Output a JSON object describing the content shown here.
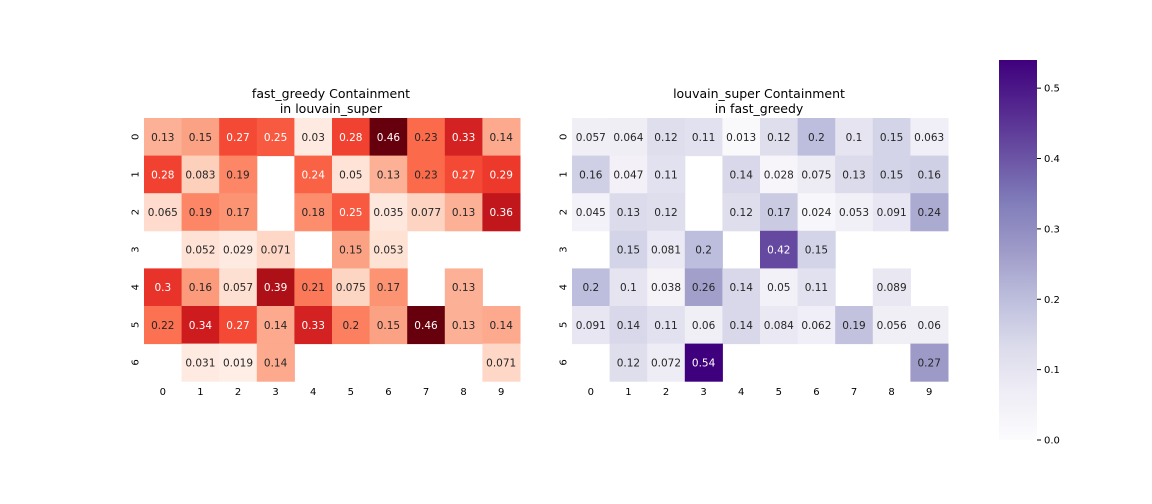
{
  "chart_data": [
    {
      "type": "heatmap",
      "title": "fast_greedy Containment\nin louvain_super",
      "colormap": "Reds",
      "xticks": [
        "0",
        "1",
        "2",
        "3",
        "4",
        "5",
        "6",
        "7",
        "8",
        "9"
      ],
      "yticks": [
        "0",
        "1",
        "2",
        "3",
        "4",
        "5",
        "6"
      ],
      "values": [
        [
          0.13,
          0.15,
          0.27,
          0.25,
          0.03,
          0.28,
          0.46,
          0.23,
          0.33,
          0.14
        ],
        [
          0.28,
          0.083,
          0.19,
          null,
          0.24,
          0.05,
          0.13,
          0.23,
          0.27,
          0.29
        ],
        [
          0.065,
          0.19,
          0.17,
          null,
          0.18,
          0.25,
          0.035,
          0.077,
          0.13,
          0.36
        ],
        [
          null,
          0.052,
          0.029,
          0.071,
          null,
          0.15,
          0.053,
          null,
          null,
          null
        ],
        [
          0.3,
          0.16,
          0.057,
          0.39,
          0.21,
          0.075,
          0.17,
          null,
          0.13,
          null
        ],
        [
          0.22,
          0.34,
          0.27,
          0.14,
          0.33,
          0.2,
          0.15,
          0.46,
          0.13,
          0.14
        ],
        [
          null,
          0.031,
          0.019,
          0.14,
          null,
          null,
          null,
          null,
          null,
          0.071
        ]
      ],
      "vmin": 0,
      "vmax": 0.46
    },
    {
      "type": "heatmap",
      "title": "louvain_super Containment\nin fast_greedy",
      "colormap": "Purples",
      "xticks": [
        "0",
        "1",
        "2",
        "3",
        "4",
        "5",
        "6",
        "7",
        "8",
        "9"
      ],
      "yticks": [
        "0",
        "1",
        "2",
        "3",
        "4",
        "5",
        "6"
      ],
      "values": [
        [
          0.057,
          0.064,
          0.12,
          0.11,
          0.013,
          0.12,
          0.2,
          0.1,
          0.15,
          0.063
        ],
        [
          0.16,
          0.047,
          0.11,
          null,
          0.14,
          0.028,
          0.075,
          0.13,
          0.15,
          0.16
        ],
        [
          0.045,
          0.13,
          0.12,
          null,
          0.12,
          0.17,
          0.024,
          0.053,
          0.091,
          0.24
        ],
        [
          null,
          0.15,
          0.081,
          0.2,
          null,
          0.42,
          0.15,
          null,
          null,
          null
        ],
        [
          0.2,
          0.1,
          0.038,
          0.26,
          0.14,
          0.05,
          0.11,
          null,
          0.089,
          null
        ],
        [
          0.091,
          0.14,
          0.11,
          0.06,
          0.14,
          0.084,
          0.062,
          0.19,
          0.056,
          0.06
        ],
        [
          null,
          0.12,
          0.072,
          0.54,
          null,
          null,
          null,
          null,
          null,
          0.27
        ]
      ],
      "vmin": 0,
      "vmax": 0.54,
      "colorbar": {
        "ticks": [
          "0.0",
          "0.1",
          "0.2",
          "0.3",
          "0.4",
          "0.5"
        ],
        "tick_values": [
          0,
          0.1,
          0.2,
          0.3,
          0.4,
          0.5
        ],
        "range": [
          0,
          0.54
        ]
      }
    }
  ]
}
